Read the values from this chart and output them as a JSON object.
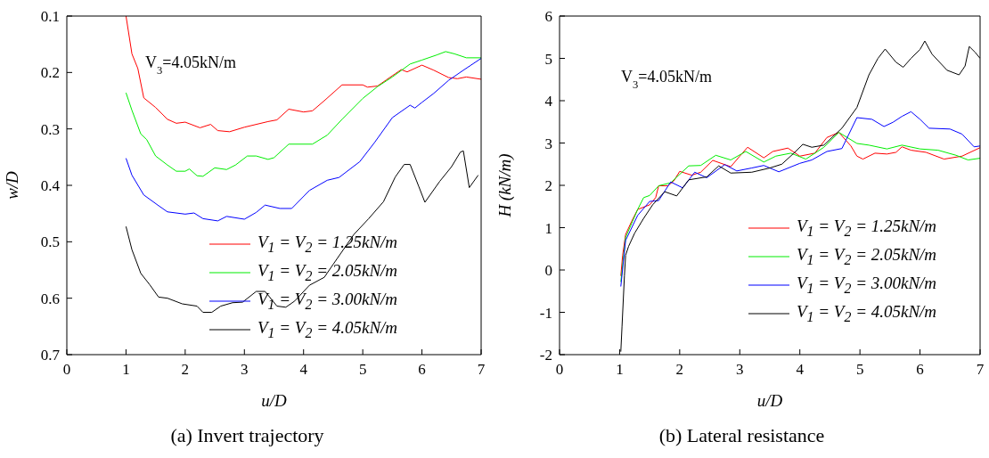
{
  "chart_data": [
    {
      "type": "line",
      "title": "(a) Invert trajectory",
      "xlabel": "u/D",
      "ylabel": "w/D",
      "annotations": [
        "V$_{3}$=4.05kN/m"
      ],
      "legend": "bottom right",
      "xlim": [
        0,
        7
      ],
      "xticks": [
        0,
        1,
        2,
        3,
        4,
        5,
        6,
        7
      ],
      "ylim": [
        0.7,
        0.1
      ],
      "yticks": [
        0.1,
        0.2,
        0.3,
        0.4,
        0.5,
        0.6,
        0.7
      ],
      "series": [
        {
          "name": "V$_{1}$ = V$_{2}$ = 1.25kN/m",
          "color": "#ff0000",
          "x": [
            1.0,
            1.1,
            1.2,
            1.3,
            1.5,
            1.7,
            1.85,
            2.0,
            2.25,
            2.43,
            2.55,
            2.75,
            3.0,
            3.4,
            3.55,
            3.75,
            4.0,
            4.15,
            4.35,
            4.65,
            5.0,
            5.08,
            5.25,
            5.4,
            5.65,
            5.75,
            6.0,
            6.2,
            6.45,
            6.6,
            6.75,
            7.0
          ],
          "values": [
            0.1,
            0.167,
            0.193,
            0.245,
            0.262,
            0.283,
            0.29,
            0.288,
            0.298,
            0.292,
            0.303,
            0.305,
            0.297,
            0.287,
            0.284,
            0.265,
            0.27,
            0.268,
            0.25,
            0.222,
            0.222,
            0.226,
            0.224,
            0.213,
            0.195,
            0.199,
            0.187,
            0.196,
            0.209,
            0.211,
            0.208,
            0.212
          ]
        },
        {
          "name": "V$_{1}$ = V$_{2}$ = 2.05kN/m",
          "color": "#00ee00",
          "x": [
            1.0,
            1.1,
            1.25,
            1.35,
            1.5,
            1.7,
            1.85,
            2.0,
            2.07,
            2.2,
            2.3,
            2.5,
            2.7,
            2.85,
            3.05,
            3.2,
            3.4,
            3.5,
            3.75,
            4.15,
            4.4,
            4.65,
            5.0,
            5.25,
            5.5,
            5.8,
            6.0,
            6.25,
            6.4,
            6.55,
            6.75,
            7.0
          ],
          "values": [
            0.236,
            0.267,
            0.309,
            0.319,
            0.348,
            0.364,
            0.375,
            0.375,
            0.371,
            0.383,
            0.384,
            0.369,
            0.372,
            0.364,
            0.348,
            0.348,
            0.354,
            0.351,
            0.327,
            0.327,
            0.311,
            0.283,
            0.246,
            0.225,
            0.208,
            0.185,
            0.178,
            0.169,
            0.163,
            0.167,
            0.174,
            0.174
          ]
        },
        {
          "name": "V$_{1}$ = V$_{2}$ = 3.00kN/m",
          "color": "#0000ff",
          "x": [
            1.0,
            1.1,
            1.3,
            1.55,
            1.7,
            2.0,
            2.15,
            2.3,
            2.55,
            2.7,
            3.0,
            3.2,
            3.35,
            3.6,
            3.8,
            4.1,
            4.4,
            4.6,
            4.95,
            5.2,
            5.5,
            5.8,
            5.88,
            6.0,
            6.2,
            6.45,
            6.7,
            7.0
          ],
          "values": [
            0.352,
            0.382,
            0.417,
            0.436,
            0.447,
            0.451,
            0.449,
            0.459,
            0.463,
            0.455,
            0.46,
            0.448,
            0.435,
            0.441,
            0.441,
            0.409,
            0.391,
            0.386,
            0.358,
            0.324,
            0.28,
            0.258,
            0.263,
            0.253,
            0.237,
            0.214,
            0.196,
            0.175
          ]
        },
        {
          "name": "V$_{1}$ = V$_{2}$ = 4.05kN/m",
          "color": "#000000",
          "x": [
            1.0,
            1.1,
            1.25,
            1.4,
            1.55,
            1.7,
            1.95,
            2.2,
            2.3,
            2.45,
            2.6,
            2.8,
            2.97,
            3.2,
            3.35,
            3.55,
            3.7,
            3.85,
            4.1,
            4.35,
            4.5,
            4.85,
            5.1,
            5.35,
            5.55,
            5.7,
            5.8,
            5.95,
            6.05,
            6.3,
            6.5,
            6.65,
            6.7,
            6.8,
            6.95
          ],
          "values": [
            0.473,
            0.514,
            0.556,
            0.576,
            0.598,
            0.6,
            0.61,
            0.614,
            0.625,
            0.625,
            0.614,
            0.608,
            0.607,
            0.588,
            0.588,
            0.614,
            0.616,
            0.605,
            0.577,
            0.563,
            0.54,
            0.487,
            0.459,
            0.429,
            0.385,
            0.363,
            0.363,
            0.403,
            0.43,
            0.393,
            0.367,
            0.341,
            0.339,
            0.404,
            0.382
          ]
        }
      ]
    },
    {
      "type": "line",
      "title": "(b) Lateral resistance",
      "xlabel": "u/D",
      "ylabel": "H (kN/m)",
      "annotations": [
        "V$_{3}$=4.05kN/m"
      ],
      "legend": "bottom right",
      "xlim": [
        0,
        7
      ],
      "xticks": [
        0,
        1,
        2,
        3,
        4,
        5,
        6,
        7
      ],
      "ylim": [
        -2,
        6
      ],
      "yticks": [
        -2,
        -1,
        0,
        1,
        2,
        3,
        4,
        5,
        6
      ],
      "series": [
        {
          "name": "V$_{1}$ = V$_{2}$ = 1.25kN/m",
          "color": "#ff0000",
          "x": [
            1.02,
            1.05,
            1.1,
            1.2,
            1.3,
            1.5,
            1.6,
            1.65,
            1.8,
            1.9,
            2.0,
            2.2,
            2.35,
            2.55,
            2.85,
            3.0,
            3.13,
            3.4,
            3.55,
            3.8,
            4.0,
            4.25,
            4.45,
            4.65,
            4.85,
            4.95,
            5.05,
            5.25,
            5.45,
            5.6,
            5.7,
            5.85,
            6.1,
            6.4,
            6.7,
            7.0
          ],
          "values": [
            -0.14,
            0.35,
            0.84,
            1.15,
            1.43,
            1.54,
            1.71,
            1.99,
            1.99,
            2.1,
            2.33,
            2.24,
            2.31,
            2.59,
            2.44,
            2.69,
            2.9,
            2.65,
            2.8,
            2.88,
            2.69,
            2.76,
            3.13,
            3.25,
            2.93,
            2.69,
            2.62,
            2.76,
            2.74,
            2.78,
            2.91,
            2.83,
            2.78,
            2.62,
            2.69,
            2.89
          ]
        },
        {
          "name": "V$_{1}$ = V$_{2}$ = 2.05kN/m",
          "color": "#00ee00",
          "x": [
            1.02,
            1.1,
            1.3,
            1.4,
            1.5,
            1.65,
            1.85,
            2.15,
            2.35,
            2.6,
            2.85,
            3.1,
            3.4,
            3.6,
            3.85,
            4.1,
            4.4,
            4.65,
            4.95,
            5.15,
            5.45,
            5.7,
            6.0,
            6.3,
            6.6,
            6.8,
            7.0
          ],
          "values": [
            -0.28,
            0.77,
            1.43,
            1.71,
            1.76,
            1.99,
            2.06,
            2.46,
            2.47,
            2.71,
            2.6,
            2.8,
            2.55,
            2.69,
            2.76,
            2.62,
            2.9,
            3.25,
            2.99,
            2.95,
            2.86,
            2.95,
            2.86,
            2.83,
            2.71,
            2.6,
            2.64
          ]
        },
        {
          "name": "V$_{1}$ = V$_{2}$ = 3.00kN/m",
          "color": "#0000ff",
          "x": [
            1.02,
            1.1,
            1.3,
            1.5,
            1.65,
            1.85,
            2.05,
            2.25,
            2.45,
            2.75,
            2.95,
            3.2,
            3.4,
            3.65,
            4.0,
            4.2,
            4.45,
            4.7,
            4.95,
            5.2,
            5.4,
            5.55,
            5.7,
            5.85,
            6.0,
            6.15,
            6.5,
            6.7,
            6.9,
            7.0
          ],
          "values": [
            -0.39,
            0.7,
            1.29,
            1.62,
            1.64,
            2.08,
            1.94,
            2.31,
            2.18,
            2.49,
            2.34,
            2.41,
            2.47,
            2.32,
            2.52,
            2.6,
            2.8,
            2.87,
            3.6,
            3.56,
            3.39,
            3.49,
            3.63,
            3.74,
            3.56,
            3.35,
            3.33,
            3.21,
            2.91,
            2.93
          ]
        },
        {
          "name": "V$_{1}$ = V$_{2}$ = 4.05kN/m",
          "color": "#000000",
          "x": [
            1.02,
            1.04,
            1.08,
            1.1,
            1.15,
            1.25,
            1.4,
            1.55,
            1.75,
            1.95,
            2.15,
            2.45,
            2.65,
            2.85,
            3.2,
            3.5,
            3.7,
            3.9,
            4.05,
            4.2,
            4.4,
            4.7,
            4.95,
            5.15,
            5.3,
            5.42,
            5.6,
            5.72,
            5.85,
            6.0,
            6.08,
            6.2,
            6.45,
            6.65,
            6.75,
            6.82,
            6.92,
            7.0
          ],
          "values": [
            -1.93,
            -1.33,
            -0.14,
            0.35,
            0.56,
            0.87,
            1.22,
            1.54,
            1.85,
            1.75,
            2.13,
            2.2,
            2.46,
            2.29,
            2.31,
            2.41,
            2.5,
            2.76,
            2.97,
            2.9,
            2.95,
            3.35,
            3.84,
            4.61,
            5.0,
            5.22,
            4.91,
            4.79,
            5.0,
            5.21,
            5.41,
            5.1,
            4.72,
            4.61,
            4.82,
            5.28,
            5.14,
            5.0
          ]
        }
      ]
    }
  ]
}
